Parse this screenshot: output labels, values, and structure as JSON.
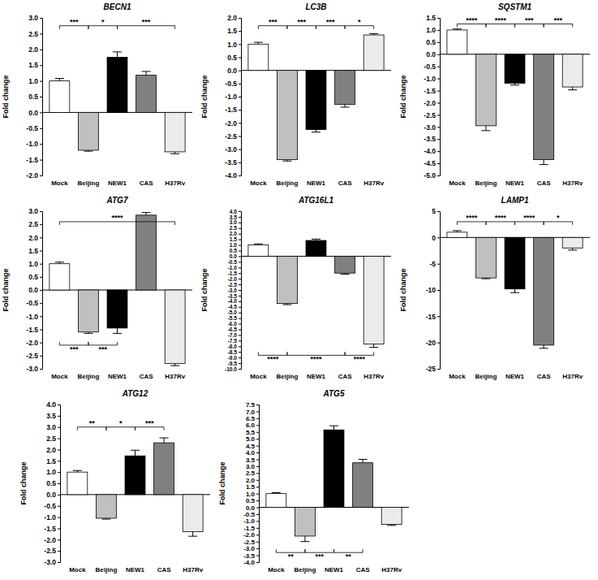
{
  "chart_data": [
    {
      "type": "bar",
      "title": "BECN1",
      "y_label": "Fold change",
      "categories": [
        "Mock",
        "Beijing",
        "NEW1",
        "CAS",
        "H37Rv"
      ],
      "values": [
        1.0,
        -1.2,
        1.75,
        1.18,
        -1.25
      ],
      "errors": [
        0.08,
        0.03,
        0.17,
        0.12,
        0.06
      ],
      "colors": [
        "#ffffff",
        "#c0c0c0",
        "#000000",
        "#808080",
        "#ebebeb"
      ],
      "ylim": [
        -2,
        3
      ],
      "yticks": [
        {
          "value": -2,
          "label": "-2.0"
        },
        -1.5,
        {
          "value": -1,
          "label": "-1.0"
        },
        -0.5,
        {
          "value": 0,
          "label": "0.0"
        },
        0.5,
        {
          "value": 1,
          "label": "1.0"
        },
        1.5,
        {
          "value": 2,
          "label": "2.0"
        },
        2.5,
        {
          "value": 3,
          "label": "3.0"
        }
      ],
      "annotations": [
        {
          "from": 0,
          "to": 1,
          "y": 2.75,
          "text": "***"
        },
        {
          "from": 1,
          "to": 2,
          "y": 2.75,
          "text": "*"
        },
        {
          "from": 2,
          "to": 4,
          "y": 2.75,
          "text": "***"
        }
      ]
    },
    {
      "type": "bar",
      "title": "LC3B",
      "y_label": "Fold change",
      "categories": [
        "Mock",
        "Beijing",
        "NEW1",
        "CAS",
        "H37Rv"
      ],
      "values": [
        1.0,
        -3.4,
        -2.25,
        -1.3,
        1.35
      ],
      "errors": [
        0.07,
        0.05,
        0.1,
        0.1,
        0.05
      ],
      "colors": [
        "#ffffff",
        "#c0c0c0",
        "#000000",
        "#808080",
        "#ebebeb"
      ],
      "ylim": [
        -4,
        2
      ],
      "yticks": [
        {
          "value": -4,
          "label": "-4.0"
        },
        -3.5,
        {
          "value": -3,
          "label": "-3.0"
        },
        -2.5,
        {
          "value": -2,
          "label": "-2.0"
        },
        -1.5,
        {
          "value": -1,
          "label": "-1.0"
        },
        -0.5,
        {
          "value": 0,
          "label": "0.0"
        },
        0.5,
        {
          "value": 1,
          "label": "1.0"
        },
        1.5,
        {
          "value": 2,
          "label": "2.0"
        }
      ],
      "annotations": [
        {
          "from": 0,
          "to": 1,
          "y": 1.7,
          "text": "***"
        },
        {
          "from": 1,
          "to": 2,
          "y": 1.7,
          "text": "***"
        },
        {
          "from": 2,
          "to": 3,
          "y": 1.7,
          "text": "***"
        },
        {
          "from": 3,
          "to": 4,
          "y": 1.7,
          "text": "*"
        }
      ]
    },
    {
      "type": "bar",
      "title": "SQSTM1",
      "y_label": "Fold change",
      "categories": [
        "Mock",
        "Beijing",
        "NEW1",
        "CAS",
        "H37Rv"
      ],
      "values": [
        1.0,
        -2.95,
        -1.2,
        -4.35,
        -1.35
      ],
      "errors": [
        0.04,
        0.2,
        0.07,
        0.2,
        0.12
      ],
      "colors": [
        "#ffffff",
        "#c0c0c0",
        "#000000",
        "#808080",
        "#ebebeb"
      ],
      "ylim": [
        -5,
        1.5
      ],
      "yticks": [
        {
          "value": -5,
          "label": "-5.0"
        },
        -4.5,
        {
          "value": -4,
          "label": "-4.0"
        },
        -3.5,
        {
          "value": -3,
          "label": "-3.0"
        },
        -2.5,
        {
          "value": -2,
          "label": "-2.0"
        },
        -1.5,
        {
          "value": -1,
          "label": "-1.0"
        },
        -0.5,
        {
          "value": 0,
          "label": "0.0"
        },
        0.5,
        {
          "value": 1,
          "label": "1.0"
        },
        1.5
      ],
      "annotations": [
        {
          "from": 0,
          "to": 1,
          "y": 1.25,
          "text": "****"
        },
        {
          "from": 1,
          "to": 2,
          "y": 1.25,
          "text": "****"
        },
        {
          "from": 2,
          "to": 3,
          "y": 1.25,
          "text": "***"
        },
        {
          "from": 3,
          "to": 4,
          "y": 1.25,
          "text": "***"
        }
      ]
    },
    {
      "type": "bar",
      "title": "ATG7",
      "y_label": "Fold change",
      "categories": [
        "Mock",
        "Beijing",
        "NEW1",
        "CAS",
        "H37Rv"
      ],
      "values": [
        1.0,
        -1.6,
        -1.45,
        2.85,
        -2.8
      ],
      "errors": [
        0.06,
        0.05,
        0.2,
        0.1,
        0.08
      ],
      "colors": [
        "#ffffff",
        "#c0c0c0",
        "#000000",
        "#808080",
        "#ebebeb"
      ],
      "ylim": [
        -3,
        3
      ],
      "yticks": [
        {
          "value": -3,
          "label": "-3.0"
        },
        -2.5,
        {
          "value": -2,
          "label": "-2.0"
        },
        -1.5,
        {
          "value": -1,
          "label": "-1.0"
        },
        -0.5,
        {
          "value": 0,
          "label": "0.0"
        },
        0.5,
        {
          "value": 1,
          "label": "1.0"
        },
        1.5,
        {
          "value": 2,
          "label": "2.0"
        },
        2.5,
        {
          "value": 3,
          "label": "3.0"
        }
      ],
      "annotations": [
        {
          "from": 0,
          "to": 4,
          "y": 2.6,
          "text": "****"
        },
        {
          "from": 0,
          "to": 1,
          "y": -2.1,
          "text": "***"
        },
        {
          "from": 1,
          "to": 2,
          "y": -2.1,
          "text": "***"
        }
      ]
    },
    {
      "type": "bar",
      "title": "ATG16L1",
      "y_label": "Fold change",
      "categories": [
        "Mock",
        "Beijing",
        "NEW1",
        "CAS",
        "H37Rv"
      ],
      "values": [
        1.0,
        -4.2,
        1.4,
        -1.5,
        -7.8
      ],
      "errors": [
        0.1,
        0.1,
        0.12,
        0.1,
        0.3
      ],
      "colors": [
        "#ffffff",
        "#c0c0c0",
        "#000000",
        "#808080",
        "#ebebeb"
      ],
      "ylim": [
        -10,
        4
      ],
      "yticks": [
        {
          "value": -10,
          "label": "-10.0"
        },
        -9.5,
        {
          "value": -9,
          "label": "-9.0"
        },
        -8.5,
        {
          "value": -8,
          "label": "-8.0"
        },
        -7.5,
        {
          "value": -7,
          "label": "-7.0"
        },
        -6.5,
        {
          "value": -6,
          "label": "-6.0"
        },
        -5.5,
        {
          "value": -5,
          "label": "-5.0"
        },
        -4.5,
        {
          "value": -4,
          "label": "-4.0"
        },
        -3.5,
        {
          "value": -3,
          "label": "-3.0"
        },
        -2.5,
        {
          "value": -2,
          "label": "-2.0"
        },
        -1.5,
        {
          "value": -1,
          "label": "-1.0"
        },
        -0.5,
        {
          "value": 0,
          "label": "0.0"
        },
        0.5,
        {
          "value": 1,
          "label": "1.0"
        },
        1.5,
        {
          "value": 2,
          "label": "2.0"
        },
        2.5,
        {
          "value": 3,
          "label": "3.0"
        },
        3.5,
        {
          "value": 4,
          "label": "4.0"
        }
      ],
      "annotations": [
        {
          "from": 0,
          "to": 1,
          "y": -8.8,
          "text": "****"
        },
        {
          "from": 1,
          "to": 3,
          "y": -8.8,
          "text": "****"
        },
        {
          "from": 3,
          "to": 4,
          "y": -8.8,
          "text": "****"
        }
      ]
    },
    {
      "type": "bar",
      "title": "LAMP1",
      "y_label": "Fold change",
      "categories": [
        "Mock",
        "Beijing",
        "NEW1",
        "CAS",
        "H37Rv"
      ],
      "values": [
        1.0,
        -7.7,
        -9.8,
        -20.5,
        -2.0
      ],
      "errors": [
        0.3,
        0.15,
        0.7,
        0.6,
        0.4
      ],
      "colors": [
        "#ffffff",
        "#c0c0c0",
        "#000000",
        "#808080",
        "#ebebeb"
      ],
      "ylim": [
        -25,
        5
      ],
      "yticks": [
        -25,
        -20,
        -15,
        -10,
        -5,
        0,
        5
      ],
      "annotations": [
        {
          "from": 0,
          "to": 1,
          "y": 3,
          "text": "****"
        },
        {
          "from": 1,
          "to": 2,
          "y": 3,
          "text": "****"
        },
        {
          "from": 2,
          "to": 3,
          "y": 3,
          "text": "****"
        },
        {
          "from": 3,
          "to": 4,
          "y": 3,
          "text": "*"
        }
      ]
    },
    {
      "type": "bar",
      "title": "ATG12",
      "y_label": "Fold change",
      "categories": [
        "Mock",
        "Beijing",
        "NEW1",
        "CAS",
        "H37Rv"
      ],
      "values": [
        1.0,
        -1.05,
        1.72,
        2.3,
        -1.65
      ],
      "errors": [
        0.07,
        0.04,
        0.25,
        0.22,
        0.2
      ],
      "colors": [
        "#ffffff",
        "#c0c0c0",
        "#000000",
        "#808080",
        "#ebebeb"
      ],
      "ylim": [
        -3,
        4
      ],
      "yticks": [
        {
          "value": -3,
          "label": "-3.0"
        },
        -2.5,
        {
          "value": -2,
          "label": "-2.0"
        },
        -1.5,
        {
          "value": -1,
          "label": "-1.0"
        },
        -0.5,
        {
          "value": 0,
          "label": "0.0"
        },
        0.5,
        {
          "value": 1,
          "label": "1.0"
        },
        1.5,
        {
          "value": 2,
          "label": "2.0"
        },
        2.5,
        {
          "value": 3,
          "label": "3.0"
        },
        3.5,
        {
          "value": 4,
          "label": "4.0"
        }
      ],
      "annotations": [
        {
          "from": 0,
          "to": 1,
          "y": 3.0,
          "text": "**"
        },
        {
          "from": 1,
          "to": 2,
          "y": 3.0,
          "text": "*"
        },
        {
          "from": 2,
          "to": 3,
          "y": 3.0,
          "text": "***"
        }
      ]
    },
    {
      "type": "bar",
      "title": "ATG5",
      "y_label": "Fold change",
      "categories": [
        "Mock",
        "Beijing",
        "NEW1",
        "CAS",
        "H37Rv"
      ],
      "values": [
        1.0,
        -2.1,
        5.65,
        3.25,
        -1.25
      ],
      "errors": [
        0.07,
        0.4,
        0.3,
        0.25,
        0.07
      ],
      "colors": [
        "#ffffff",
        "#c0c0c0",
        "#000000",
        "#808080",
        "#ebebeb"
      ],
      "ylim": [
        -4,
        7.5
      ],
      "yticks": [
        {
          "value": -4,
          "label": "-4.0"
        },
        -3.5,
        {
          "value": -3,
          "label": "-3.0"
        },
        -2.5,
        {
          "value": -2,
          "label": "-2.0"
        },
        -1.5,
        {
          "value": -1,
          "label": "-1.0"
        },
        -0.5,
        {
          "value": 0,
          "label": "0.0"
        },
        0.5,
        {
          "value": 1,
          "label": "1.0"
        },
        1.5,
        {
          "value": 2,
          "label": "2.0"
        },
        2.5,
        {
          "value": 3,
          "label": "3.0"
        },
        3.5,
        {
          "value": 4,
          "label": "4.0"
        },
        4.5,
        {
          "value": 5,
          "label": "5.0"
        },
        5.5,
        {
          "value": 6,
          "label": "6.0"
        },
        6.5,
        {
          "value": 7,
          "label": "7.0"
        },
        7.5
      ],
      "annotations": [
        {
          "from": 0,
          "to": 1,
          "y": -3.3,
          "text": "**"
        },
        {
          "from": 1,
          "to": 2,
          "y": -3.3,
          "text": "***"
        },
        {
          "from": 2,
          "to": 3,
          "y": -3.3,
          "text": "**"
        }
      ]
    }
  ]
}
